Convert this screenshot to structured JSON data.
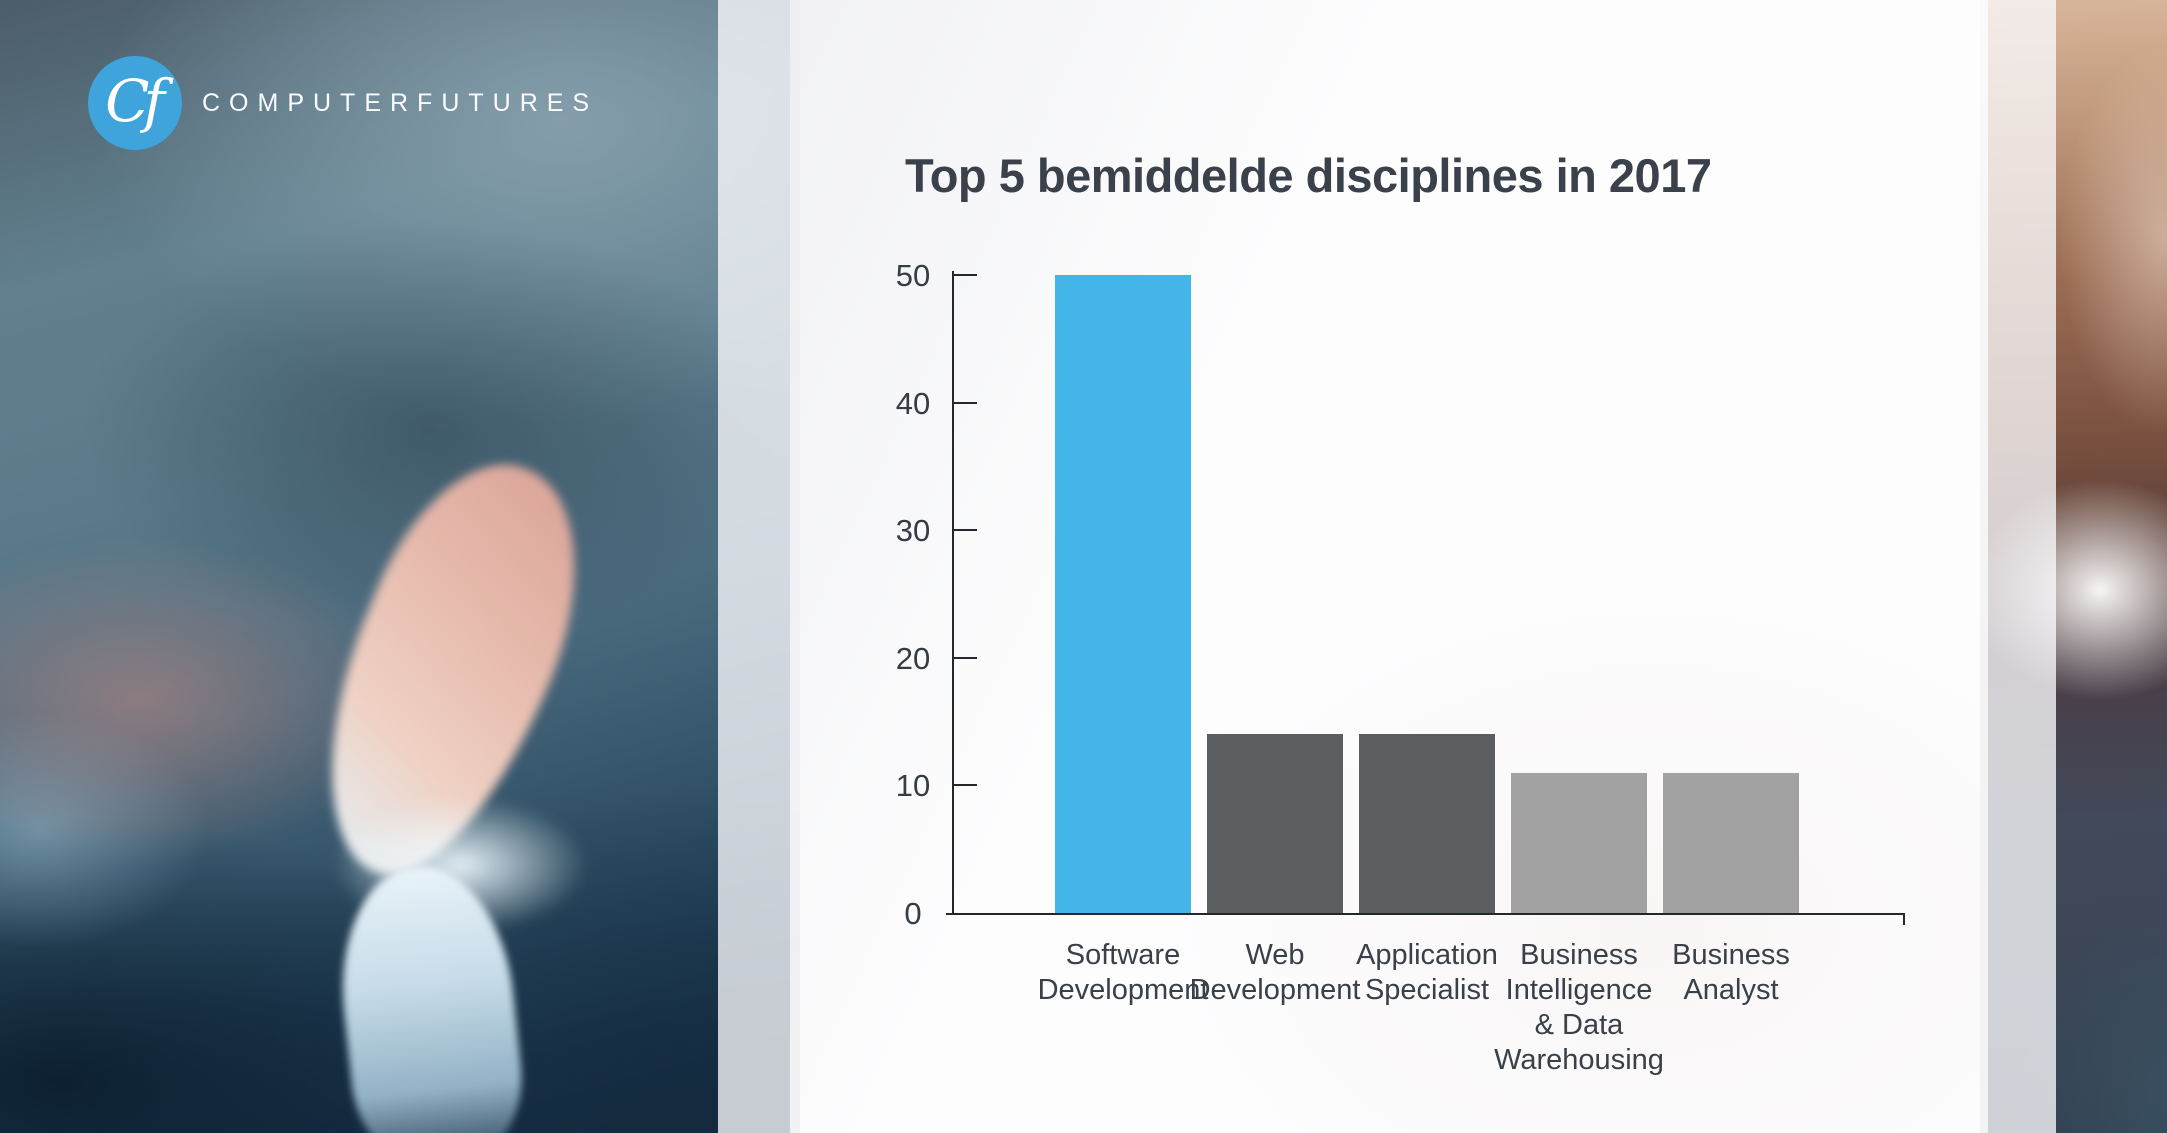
{
  "brand": {
    "name": "COMPUTERFUTURES",
    "monogram": "Cf"
  },
  "chart_data": {
    "type": "bar",
    "title": "Top 5 bemiddelde disciplines in 2017",
    "categories": [
      "Software Development",
      "Web Development",
      "Application Specialist",
      "Business Intelligence & Data Warehousing",
      "Business Analyst"
    ],
    "category_lines": [
      [
        "Software",
        "Development"
      ],
      [
        "Web",
        "Development"
      ],
      [
        "Application",
        "Specialist"
      ],
      [
        "Business",
        "Intelligence",
        "& Data",
        "Warehousing"
      ],
      [
        "Business",
        "Analyst"
      ]
    ],
    "values": [
      50,
      14,
      14,
      11,
      11
    ],
    "bar_colors": [
      "#44b5e8",
      "#5b5e60",
      "#5b5e60",
      "#a2a2a3",
      "#a2a2a3"
    ],
    "xlabel": "",
    "ylabel": "",
    "ylim": [
      0,
      50
    ],
    "yticks": [
      0,
      10,
      20,
      30,
      40,
      50
    ],
    "grid": false,
    "legend": false
  },
  "colors": {
    "accent_blue": "#44b5e8",
    "dark_gray_bar": "#5b5e60",
    "light_gray_bar": "#a2a2a3",
    "title_text": "#3a414b",
    "axis": "#23282d",
    "logo_blue": "#3fa3dc"
  }
}
